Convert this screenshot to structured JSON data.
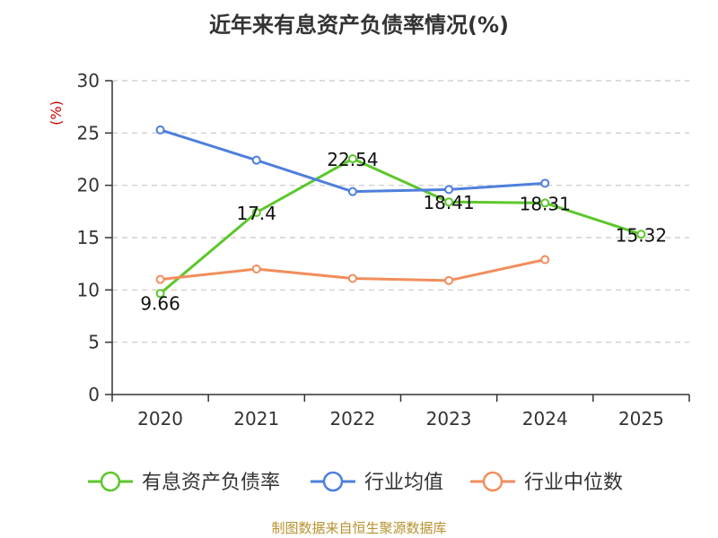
{
  "chart_data": {
    "type": "line",
    "title": "近年来有息资产负债率情况(%)",
    "ylabel": "(%)",
    "categories": [
      "2020",
      "2021",
      "2022",
      "2023",
      "2024",
      "2025"
    ],
    "ylim": [
      0,
      30
    ],
    "yticks": [
      0,
      5,
      10,
      15,
      20,
      25,
      30
    ],
    "grid": true,
    "legend_position": "bottom",
    "series": [
      {
        "name": "有息资产负债率",
        "color": "#5cc72b",
        "values": [
          9.66,
          17.4,
          22.54,
          18.41,
          18.31,
          15.32
        ],
        "labels": [
          "9.66",
          "17.4",
          "22.54",
          "18.41",
          "18.31",
          "15.32"
        ]
      },
      {
        "name": "行业均值",
        "color": "#4e7fdc",
        "values": [
          25.3,
          22.4,
          19.4,
          19.6,
          20.2,
          null
        ]
      },
      {
        "name": "行业中位数",
        "color": "#f28e5c",
        "values": [
          11.0,
          12.0,
          11.1,
          10.9,
          12.9,
          null
        ]
      }
    ],
    "source": "制图数据来自恒生聚源数据库"
  }
}
